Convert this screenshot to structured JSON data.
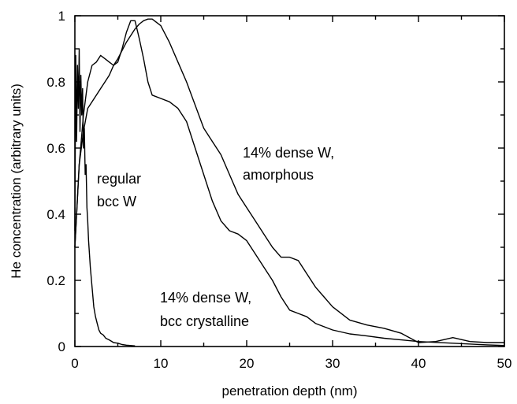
{
  "chart_data": {
    "type": "line",
    "xlabel": "penetration depth (nm)",
    "ylabel": "He concentration (arbitrary units)",
    "xlim": [
      0,
      50
    ],
    "ylim": [
      0,
      1
    ],
    "x_ticks": [
      "0",
      "10",
      "20",
      "30",
      "40",
      "50"
    ],
    "y_ticks": [
      "0",
      "0.2",
      "0.4",
      "0.6",
      "0.8",
      "1"
    ],
    "grid": false,
    "annotations": {
      "regular": [
        "regular",
        "bcc W"
      ],
      "amorphous": [
        "14% dense W,",
        "amorphous"
      ],
      "crystalline": [
        "14% dense W,",
        "bcc crystalline"
      ]
    },
    "series": [
      {
        "x": [
          0,
          0.1,
          0.2,
          0.3,
          0.4,
          0.5,
          0.6,
          0.7,
          0.8,
          0.9,
          1.0,
          1.1,
          1.2,
          1.3,
          1.4,
          1.5,
          1.6,
          1.8,
          2.0,
          2.2,
          2.4,
          2.6,
          2.8,
          3.0,
          3.3,
          3.6,
          4.0,
          4.5,
          5.0,
          5.5,
          6.0,
          7.0
        ],
        "y": [
          0.35,
          0.88,
          0.62,
          0.85,
          0.72,
          0.9,
          0.65,
          0.82,
          0.7,
          0.78,
          0.6,
          0.66,
          0.52,
          0.55,
          0.42,
          0.38,
          0.32,
          0.24,
          0.18,
          0.12,
          0.09,
          0.07,
          0.05,
          0.04,
          0.035,
          0.025,
          0.02,
          0.012,
          0.01,
          0.006,
          0.004,
          0.002
        ]
      },
      {
        "x": [
          0,
          0.5,
          1,
          1.5,
          2,
          2.5,
          3,
          3.5,
          4,
          4.5,
          5,
          6,
          7,
          7.5,
          8,
          8.5,
          9,
          10,
          11,
          12,
          13,
          14,
          15,
          16,
          17,
          18,
          19,
          20,
          21,
          22,
          23,
          24,
          25,
          26,
          27,
          28,
          29,
          30,
          32,
          34,
          36,
          38,
          40,
          42,
          44,
          46,
          48,
          50
        ],
        "y": [
          0.3,
          0.55,
          0.65,
          0.72,
          0.74,
          0.76,
          0.78,
          0.8,
          0.82,
          0.85,
          0.87,
          0.92,
          0.96,
          0.975,
          0.985,
          0.99,
          0.99,
          0.97,
          0.92,
          0.86,
          0.8,
          0.73,
          0.66,
          0.62,
          0.58,
          0.52,
          0.46,
          0.42,
          0.38,
          0.34,
          0.3,
          0.27,
          0.27,
          0.26,
          0.22,
          0.18,
          0.15,
          0.12,
          0.08,
          0.065,
          0.055,
          0.04,
          0.012,
          0.015,
          0.027,
          0.015,
          0.012,
          0.012
        ]
      },
      {
        "x": [
          0,
          0.5,
          1,
          1.5,
          2,
          2.5,
          3,
          3.5,
          4,
          4.5,
          5,
          5.5,
          6,
          6.5,
          7,
          7.5,
          8,
          8.5,
          9,
          10,
          11,
          12,
          13,
          14,
          15,
          16,
          17,
          18,
          19,
          20,
          21,
          22,
          23,
          24,
          25,
          26,
          27,
          28,
          30,
          32,
          34,
          36,
          38,
          40,
          44,
          48,
          50
        ],
        "y": [
          0.3,
          0.55,
          0.7,
          0.8,
          0.85,
          0.86,
          0.88,
          0.87,
          0.86,
          0.85,
          0.86,
          0.9,
          0.95,
          0.985,
          0.985,
          0.93,
          0.87,
          0.8,
          0.76,
          0.75,
          0.74,
          0.72,
          0.68,
          0.6,
          0.52,
          0.44,
          0.38,
          0.35,
          0.34,
          0.32,
          0.28,
          0.24,
          0.2,
          0.15,
          0.11,
          0.1,
          0.09,
          0.07,
          0.05,
          0.038,
          0.032,
          0.025,
          0.02,
          0.015,
          0.01,
          0.005,
          0.003
        ]
      }
    ]
  }
}
